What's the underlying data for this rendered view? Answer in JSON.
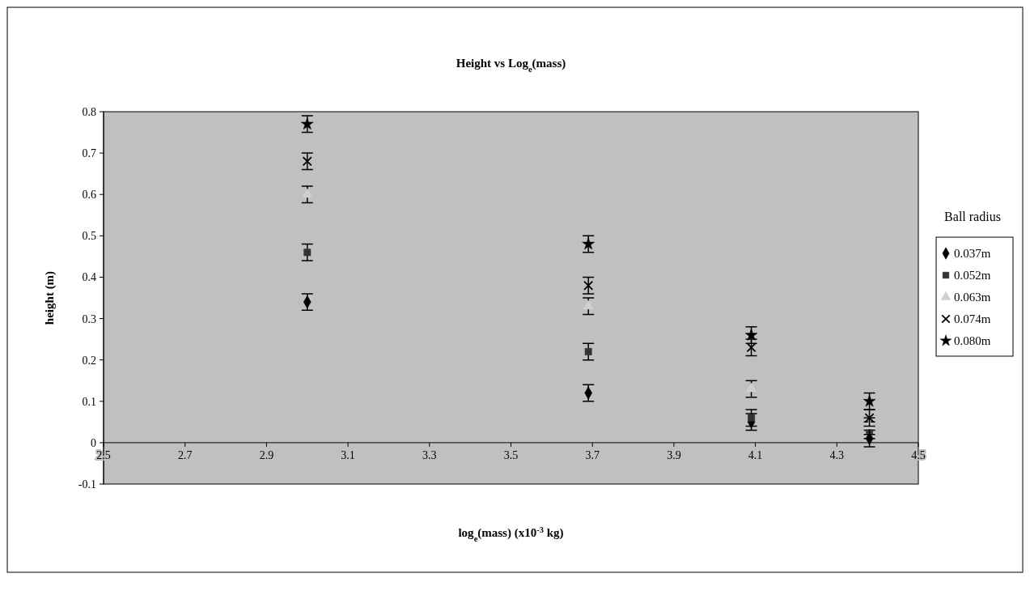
{
  "chart_data": {
    "type": "scatter",
    "title": "Height vs Log$_{e}$(mass)",
    "xlabel": "log$_{e}$(mass) (x10$^{-3}$ kg)",
    "ylabel": "height (m)",
    "legend_title": "Ball radius",
    "legend": "right",
    "grid": false,
    "xlim": [
      2.5,
      4.5
    ],
    "xticks": [
      2.5,
      2.7,
      2.9,
      3.1,
      3.3,
      3.5,
      3.7,
      3.9,
      4.1,
      4.3,
      4.5
    ],
    "ylim": [
      -0.1,
      0.8
    ],
    "yticks": [
      -0.1,
      0,
      0.1,
      0.2,
      0.3,
      0.4,
      0.5,
      0.6,
      0.7,
      0.8
    ],
    "x": [
      3.0,
      3.69,
      4.09,
      4.38
    ],
    "series": [
      {
        "name": "0.037m",
        "color": "#000000",
        "marker": "diamond",
        "values": [
          0.34,
          0.12,
          0.05,
          0.01
        ],
        "errors": [
          0.02,
          0.02,
          0.02,
          0.02
        ]
      },
      {
        "name": "0.052m",
        "color": "#333333",
        "marker": "square",
        "values": [
          0.46,
          0.22,
          0.06,
          0.03
        ],
        "errors": [
          0.02,
          0.02,
          0.02,
          0.02
        ]
      },
      {
        "name": "0.063m",
        "color": "#d0d0d0",
        "marker": "triangle",
        "values": [
          0.6,
          0.33,
          0.13,
          0.04
        ],
        "errors": [
          0.02,
          0.02,
          0.02,
          0.02
        ]
      },
      {
        "name": "0.074m",
        "color": "#000000",
        "marker": "cross",
        "values": [
          0.68,
          0.38,
          0.23,
          0.06
        ],
        "errors": [
          0.02,
          0.02,
          0.02,
          0.02
        ]
      },
      {
        "name": "0.080m",
        "color": "#000000",
        "marker": "star",
        "values": [
          0.77,
          0.48,
          0.26,
          0.1
        ],
        "errors": [
          0.02,
          0.02,
          0.02,
          0.02
        ]
      }
    ]
  }
}
